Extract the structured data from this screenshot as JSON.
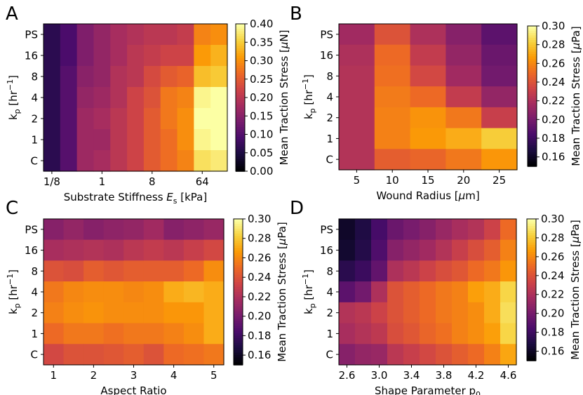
{
  "figure": {
    "panels": [
      "A",
      "B",
      "C",
      "D"
    ],
    "y_label_prefix": "k",
    "y_label_sub": "p",
    "y_label_unit": " [hr",
    "y_label_exp": "−1",
    "y_label_close": "]"
  },
  "colors": {
    "colormap": "inferno",
    "stops": [
      "#000004",
      "#1b0c41",
      "#4a0c6b",
      "#781c6d",
      "#a52c60",
      "#cf4446",
      "#ed6925",
      "#fb9b06",
      "#f7d13d",
      "#fcffa4"
    ]
  },
  "chart_data": [
    {
      "panel": "A",
      "type": "heatmap",
      "xlabel_main": "Substrate Stiffness ",
      "xlabel_sym": "E",
      "xlabel_sub": "s",
      "xlabel_unit": " [kPa]",
      "ylabel": "kp [hr−1]",
      "rows": [
        "PS",
        "16",
        "8",
        "4",
        "2",
        "1",
        "C"
      ],
      "cols": 11,
      "xticks": [
        {
          "label": "1/8",
          "col": 0
        },
        {
          "label": "1",
          "col": 3
        },
        {
          "label": "8",
          "col": 6
        },
        {
          "label": "64",
          "col": 9
        }
      ],
      "yticks": [
        "PS",
        "16",
        "8",
        "4",
        "2",
        "1",
        "C"
      ],
      "colorbar": {
        "min": 0.0,
        "max": 0.4,
        "ticks": [
          "0.00",
          "0.05",
          "0.10",
          "0.15",
          "0.20",
          "0.25",
          "0.30",
          "0.35",
          "0.40"
        ],
        "label": "Mean Traction Stress [",
        "label_sym": "μ",
        "label_unit": "N]"
      },
      "values": [
        [
          0.06,
          0.09,
          0.14,
          0.16,
          0.18,
          0.19,
          0.2,
          0.2,
          0.21,
          0.29,
          0.3
        ],
        [
          0.06,
          0.09,
          0.14,
          0.16,
          0.18,
          0.2,
          0.21,
          0.22,
          0.22,
          0.31,
          0.33
        ],
        [
          0.06,
          0.1,
          0.15,
          0.16,
          0.19,
          0.2,
          0.23,
          0.25,
          0.26,
          0.34,
          0.35
        ],
        [
          0.06,
          0.1,
          0.16,
          0.17,
          0.19,
          0.22,
          0.24,
          0.28,
          0.29,
          0.39,
          0.4
        ],
        [
          0.06,
          0.1,
          0.17,
          0.18,
          0.2,
          0.22,
          0.25,
          0.28,
          0.3,
          0.4,
          0.4
        ],
        [
          0.06,
          0.1,
          0.17,
          0.17,
          0.2,
          0.22,
          0.25,
          0.27,
          0.3,
          0.39,
          0.4
        ],
        [
          0.06,
          0.1,
          0.17,
          0.18,
          0.2,
          0.22,
          0.25,
          0.27,
          0.29,
          0.37,
          0.38
        ]
      ]
    },
    {
      "panel": "B",
      "type": "heatmap",
      "xlabel_main": "Wound Radius [",
      "xlabel_sym": "μ",
      "xlabel_unit": "m]",
      "ylabel": "kp [hr−1]",
      "rows": [
        "PS",
        "16",
        "8",
        "4",
        "2",
        "1",
        "C"
      ],
      "cols": 5,
      "xticks": [
        {
          "label": "5",
          "col": 0
        },
        {
          "label": "10",
          "col": 1
        },
        {
          "label": "15",
          "col": 2
        },
        {
          "label": "20",
          "col": 3
        },
        {
          "label": "25",
          "col": 4
        }
      ],
      "yticks": [
        "PS",
        "16",
        "8",
        "4",
        "2",
        "1",
        "C"
      ],
      "colorbar": {
        "min": 0.15,
        "max": 0.3,
        "ticks": [
          "0.16",
          "0.18",
          "0.20",
          "0.22",
          "0.24",
          "0.26",
          "0.28",
          "0.30"
        ],
        "label": "Mean Traction Stress [",
        "label_sym": "μ",
        "label_unit": "Pa]"
      },
      "values": [
        [
          0.215,
          0.24,
          0.22,
          0.205,
          0.19
        ],
        [
          0.22,
          0.25,
          0.228,
          0.21,
          0.195
        ],
        [
          0.222,
          0.252,
          0.235,
          0.215,
          0.198
        ],
        [
          0.222,
          0.256,
          0.25,
          0.228,
          0.21
        ],
        [
          0.222,
          0.258,
          0.264,
          0.255,
          0.23
        ],
        [
          0.222,
          0.258,
          0.266,
          0.272,
          0.282
        ],
        [
          0.222,
          0.245,
          0.248,
          0.255,
          0.265
        ]
      ]
    },
    {
      "panel": "C",
      "type": "heatmap",
      "xlabel_main": "Aspect Ratio",
      "ylabel": "kp [hr−1]",
      "rows": [
        "PS",
        "16",
        "8",
        "4",
        "2",
        "1",
        "C"
      ],
      "cols": 9,
      "xticks": [
        {
          "label": "1",
          "col": 0
        },
        {
          "label": "2",
          "col": 2
        },
        {
          "label": "3",
          "col": 4
        },
        {
          "label": "4",
          "col": 6
        },
        {
          "label": "5",
          "col": 8
        }
      ],
      "yticks": [
        "PS",
        "16",
        "8",
        "4",
        "2",
        "1",
        "C"
      ],
      "colorbar": {
        "min": 0.15,
        "max": 0.3,
        "ticks": [
          "0.16",
          "0.18",
          "0.20",
          "0.22",
          "0.24",
          "0.26",
          "0.28",
          "0.30"
        ],
        "label": "Mean Traction Stress [",
        "label_sym": "μ",
        "label_unit": "Pa]"
      },
      "values": [
        [
          0.205,
          0.21,
          0.205,
          0.208,
          0.21,
          0.215,
          0.205,
          0.208,
          0.212
        ],
        [
          0.218,
          0.22,
          0.222,
          0.22,
          0.225,
          0.228,
          0.225,
          0.23,
          0.235
        ],
        [
          0.24,
          0.238,
          0.245,
          0.242,
          0.245,
          0.245,
          0.245,
          0.25,
          0.262
        ],
        [
          0.255,
          0.26,
          0.262,
          0.262,
          0.26,
          0.262,
          0.272,
          0.275,
          0.272
        ],
        [
          0.258,
          0.262,
          0.264,
          0.262,
          0.262,
          0.262,
          0.265,
          0.265,
          0.272
        ],
        [
          0.25,
          0.255,
          0.255,
          0.252,
          0.255,
          0.255,
          0.258,
          0.262,
          0.272
        ],
        [
          0.235,
          0.24,
          0.24,
          0.242,
          0.245,
          0.24,
          0.25,
          0.252,
          0.255
        ]
      ]
    },
    {
      "panel": "D",
      "type": "heatmap",
      "xlabel_main": "Shape Parameter p",
      "xlabel_sub": "0",
      "ylabel": "kp [hr−1]",
      "rows": [
        "PS",
        "16",
        "8",
        "4",
        "2",
        "1",
        "C"
      ],
      "cols": 11,
      "xticks": [
        {
          "label": "2.6",
          "col": 0
        },
        {
          "label": "3.0",
          "col": 2
        },
        {
          "label": "3.4",
          "col": 4
        },
        {
          "label": "3.8",
          "col": 6
        },
        {
          "label": "4.2",
          "col": 8
        },
        {
          "label": "4.6",
          "col": 10
        }
      ],
      "yticks": [
        "PS",
        "16",
        "8",
        "4",
        "2",
        "1",
        "C"
      ],
      "colorbar": {
        "min": 0.15,
        "max": 0.3,
        "ticks": [
          "0.16",
          "0.18",
          "0.20",
          "0.22",
          "0.24",
          "0.26",
          "0.28",
          "0.30"
        ],
        "label": "Mean Traction Stress [",
        "label_sym": "μ",
        "label_unit": "Pa]"
      },
      "values": [
        [
          0.16,
          0.168,
          0.182,
          0.195,
          0.2,
          0.205,
          0.212,
          0.218,
          0.222,
          0.232,
          0.25
        ],
        [
          0.162,
          0.17,
          0.185,
          0.205,
          0.21,
          0.215,
          0.222,
          0.23,
          0.238,
          0.245,
          0.258
        ],
        [
          0.172,
          0.178,
          0.192,
          0.22,
          0.225,
          0.232,
          0.238,
          0.242,
          0.25,
          0.255,
          0.265
        ],
        [
          0.19,
          0.198,
          0.22,
          0.24,
          0.245,
          0.25,
          0.255,
          0.258,
          0.268,
          0.272,
          0.285
        ],
        [
          0.222,
          0.225,
          0.232,
          0.24,
          0.245,
          0.25,
          0.255,
          0.258,
          0.262,
          0.272,
          0.288
        ],
        [
          0.218,
          0.222,
          0.226,
          0.238,
          0.242,
          0.248,
          0.252,
          0.258,
          0.262,
          0.268,
          0.285
        ],
        [
          0.205,
          0.21,
          0.212,
          0.225,
          0.23,
          0.235,
          0.24,
          0.245,
          0.25,
          0.258,
          0.27
        ]
      ]
    }
  ]
}
